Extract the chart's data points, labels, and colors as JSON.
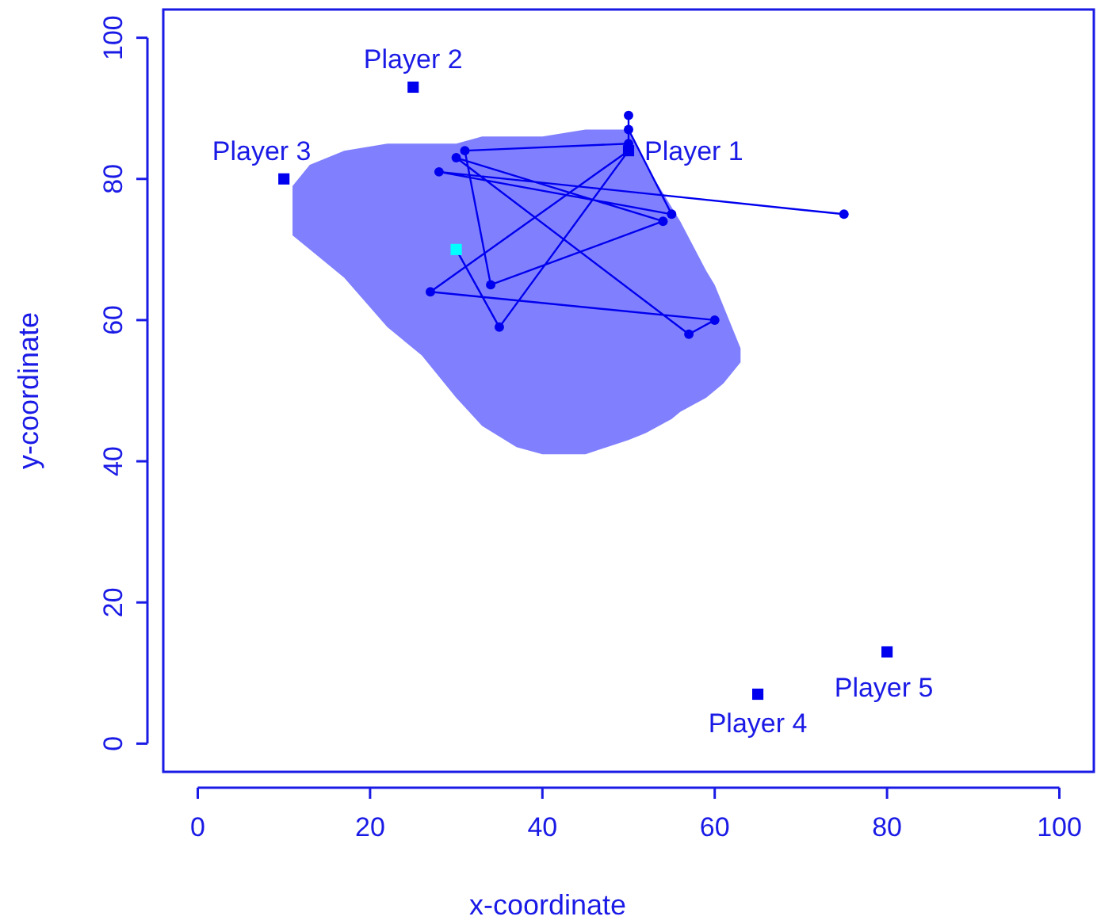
{
  "chart_data": {
    "type": "scatter",
    "xlabel": "x-coordinate",
    "ylabel": "y-coordinate",
    "xlim": [
      -4,
      104
    ],
    "ylim": [
      -4,
      104
    ],
    "xticks": [
      0,
      20,
      40,
      60,
      80,
      100
    ],
    "yticks": [
      0,
      20,
      40,
      60,
      80,
      100
    ],
    "grid": false,
    "series": [
      {
        "type": "line",
        "color": "#8080ff",
        "x": [
          11,
          13,
          17,
          22,
          26,
          30,
          33,
          37,
          40,
          45,
          50,
          52,
          55,
          56,
          59,
          60,
          61,
          63
        ],
        "values": [
          null,
          null,
          null,
          null,
          null,
          null,
          null,
          null,
          null,
          null,
          null,
          null,
          null,
          null,
          null,
          null,
          null,
          null
        ],
        "upper": [
          79,
          82,
          84,
          85,
          85,
          85,
          86,
          86,
          86,
          87,
          87,
          82,
          76,
          74,
          67,
          65,
          62,
          56
        ],
        "lower": [
          72,
          70,
          66,
          59,
          55,
          49,
          45,
          42,
          41,
          41,
          43,
          44,
          46,
          47,
          49,
          50,
          51,
          54
        ]
      },
      {
        "type": "line",
        "color": "#0000ee",
        "marker": "circle",
        "x": [
          30,
          35,
          50,
          27,
          60,
          57,
          30,
          54,
          34,
          31,
          50,
          50,
          50,
          55,
          28,
          75
        ],
        "values": [
          70,
          59,
          84,
          64,
          60,
          58,
          83,
          74,
          65,
          84,
          85,
          89,
          87,
          75,
          81,
          75
        ]
      },
      {
        "color": "#00ffff",
        "marker": "square",
        "x": [
          30
        ],
        "values": [
          70
        ]
      },
      {
        "color": "#0000ee",
        "marker": "square",
        "x": [
          50,
          25,
          10,
          65,
          80
        ],
        "values": [
          84,
          93,
          80,
          7,
          13
        ]
      }
    ],
    "annotations": [
      {
        "text": "Player 1",
        "x": 50,
        "y": 84
      },
      {
        "text": "Player 2",
        "x": 25,
        "y": 93
      },
      {
        "text": "Player 3",
        "x": 10,
        "y": 80
      },
      {
        "text": "Player 4",
        "x": 65,
        "y": 7
      },
      {
        "text": "Player 5",
        "x": 80,
        "y": 13
      }
    ]
  }
}
